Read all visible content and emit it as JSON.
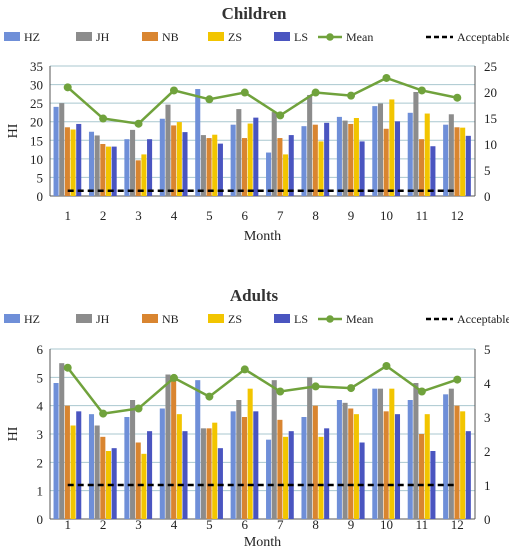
{
  "colors": {
    "HZ": "#6F8FD8",
    "JH": "#8C8C8C",
    "NB": "#D98530",
    "ZS": "#F2C500",
    "LS": "#4A55C0",
    "Mean": "#70A23C",
    "Acceptable": "#000000",
    "grid": "#A9C7CF"
  },
  "chart_data": [
    {
      "type": "bar",
      "title": "Children",
      "xlabel": "Month",
      "ylabel": "HI",
      "categories": [
        "1",
        "2",
        "3",
        "4",
        "5",
        "6",
        "7",
        "8",
        "9",
        "10",
        "11",
        "12"
      ],
      "ylim": [
        0,
        35
      ],
      "y_ticks": [
        "0",
        "5",
        "10",
        "15",
        "20",
        "25",
        "30",
        "35"
      ],
      "y2lim": [
        0,
        25
      ],
      "y2_ticks": [
        "0",
        "5",
        "10",
        "15",
        "20",
        "25"
      ],
      "legend_position": "top",
      "series": [
        {
          "name": "HZ",
          "axis": "left",
          "values": [
            24,
            17.3,
            15.3,
            20.8,
            28.8,
            19.2,
            11.7,
            18.8,
            21.3,
            24.2,
            22.4,
            19.2
          ]
        },
        {
          "name": "JH",
          "axis": "left",
          "values": [
            25,
            16.3,
            17.8,
            24.6,
            16.4,
            23.4,
            22.6,
            27.2,
            20.3,
            24.9,
            28,
            22
          ]
        },
        {
          "name": "NB",
          "axis": "left",
          "values": [
            18.5,
            14,
            9.6,
            19,
            15.6,
            15.6,
            15.6,
            19.2,
            19.4,
            18.1,
            15.3,
            18.5
          ]
        },
        {
          "name": "ZS",
          "axis": "left",
          "values": [
            17.9,
            13.3,
            11.2,
            19.9,
            16.5,
            19.5,
            11.2,
            14.7,
            21,
            26,
            22.2,
            18.4
          ]
        },
        {
          "name": "LS",
          "axis": "left",
          "values": [
            19.4,
            13.3,
            15.3,
            17.2,
            14.1,
            21.1,
            16.4,
            19.7,
            14.7,
            20.1,
            13.4,
            16.2
          ]
        },
        {
          "name": "Mean",
          "axis": "right",
          "type": "line",
          "values": [
            20.9,
            14.9,
            13.9,
            20.3,
            18.6,
            19.9,
            15.5,
            19.9,
            19.3,
            22.7,
            20.3,
            18.9
          ]
        },
        {
          "name": "Acceptable level",
          "axis": "right",
          "type": "line",
          "style": "dashed",
          "values": [
            1,
            1,
            1,
            1,
            1,
            1,
            1,
            1,
            1,
            1,
            1,
            1
          ]
        }
      ]
    },
    {
      "type": "bar",
      "title": "Adults",
      "xlabel": "Month",
      "ylabel": "HI",
      "categories": [
        "1",
        "2",
        "3",
        "4",
        "5",
        "6",
        "7",
        "8",
        "9",
        "10",
        "11",
        "12"
      ],
      "ylim": [
        0,
        6
      ],
      "y_ticks": [
        "0",
        "1",
        "2",
        "3",
        "4",
        "5",
        "6"
      ],
      "y2lim": [
        0,
        5
      ],
      "y2_ticks": [
        "0",
        "1",
        "2",
        "3",
        "4",
        "5"
      ],
      "legend_position": "top",
      "series": [
        {
          "name": "HZ",
          "axis": "left",
          "values": [
            4.8,
            3.7,
            3.6,
            3.9,
            4.9,
            3.8,
            2.8,
            3.6,
            4.2,
            4.6,
            4.2,
            4.4
          ]
        },
        {
          "name": "JH",
          "axis": "left",
          "values": [
            5.5,
            3.3,
            4.2,
            5.1,
            3.2,
            4.2,
            4.9,
            5.0,
            4.1,
            4.6,
            4.8,
            4.6
          ]
        },
        {
          "name": "NB",
          "axis": "left",
          "values": [
            4.0,
            2.9,
            2.7,
            5.0,
            3.2,
            3.6,
            3.5,
            4.0,
            3.9,
            3.8,
            3.0,
            4.0
          ]
        },
        {
          "name": "ZS",
          "axis": "left",
          "values": [
            3.3,
            2.4,
            2.3,
            3.7,
            3.4,
            4.6,
            2.9,
            2.9,
            3.7,
            4.6,
            3.7,
            3.8
          ]
        },
        {
          "name": "LS",
          "axis": "left",
          "values": [
            3.8,
            2.5,
            3.1,
            3.1,
            2.5,
            3.8,
            3.1,
            3.2,
            2.7,
            3.7,
            2.4,
            3.1
          ]
        },
        {
          "name": "Mean",
          "axis": "right",
          "type": "line",
          "values": [
            4.45,
            3.1,
            3.25,
            4.15,
            3.6,
            4.4,
            3.75,
            3.9,
            3.85,
            4.5,
            3.75,
            4.1
          ]
        },
        {
          "name": "Acceptable level",
          "axis": "right",
          "type": "line",
          "style": "dashed",
          "values": [
            1,
            1,
            1,
            1,
            1,
            1,
            1,
            1,
            1,
            1,
            1,
            1
          ]
        }
      ]
    }
  ]
}
